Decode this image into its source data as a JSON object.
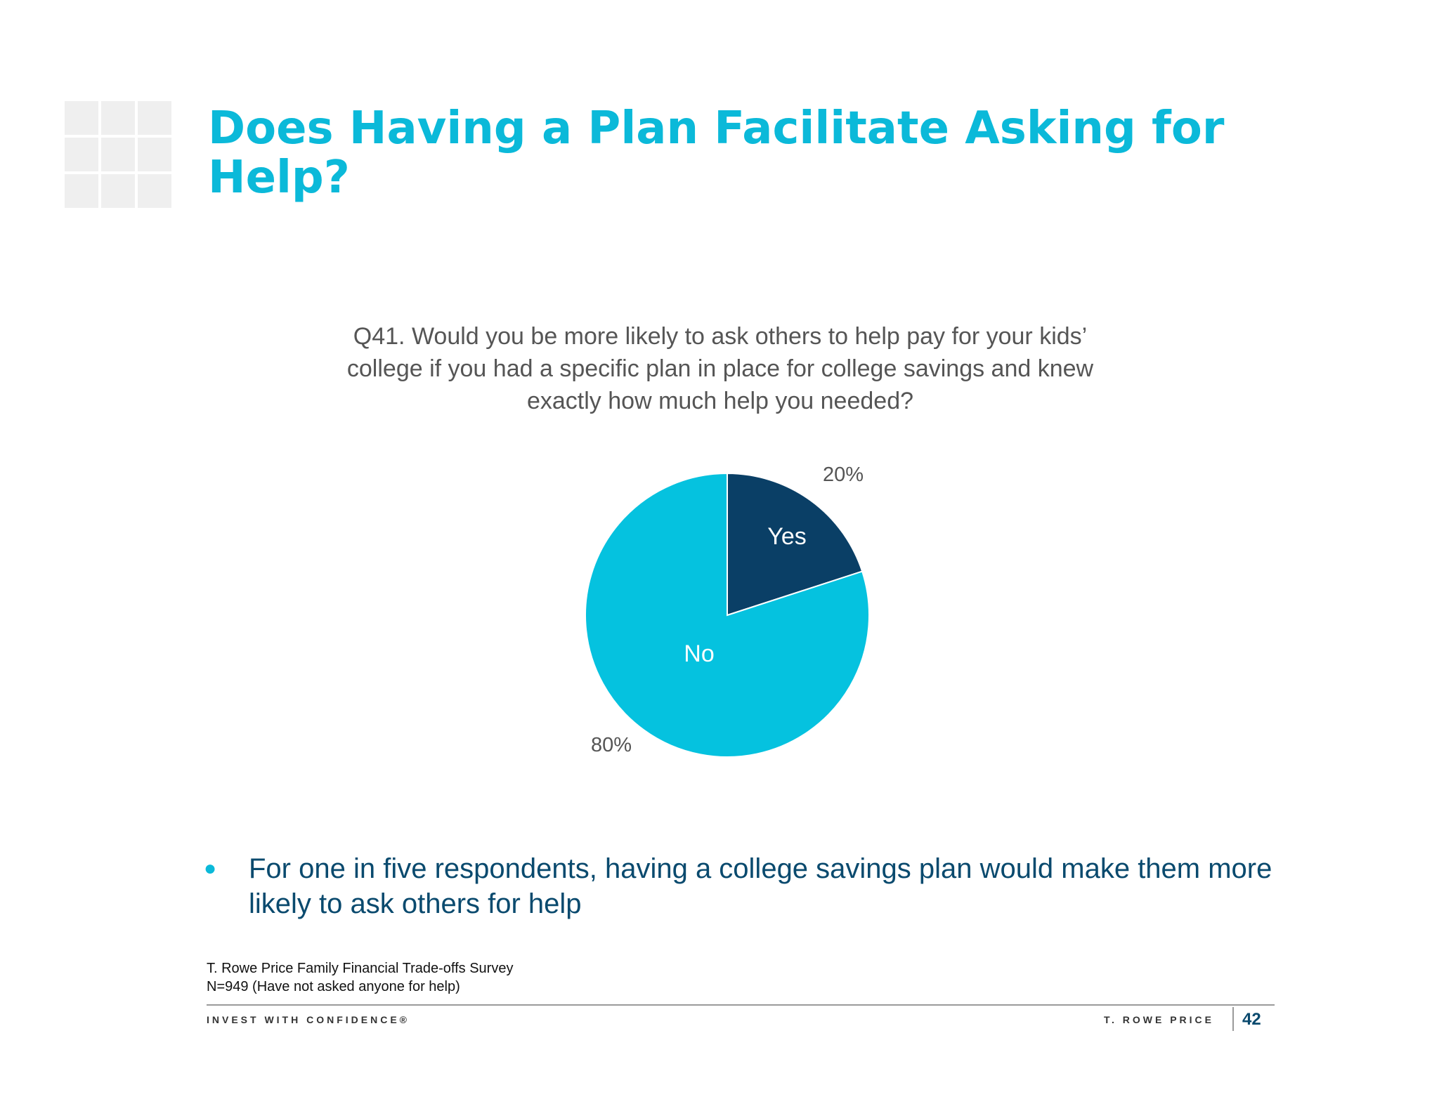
{
  "slide": {
    "title": "Does Having a Plan Facilitate Asking for Help?",
    "question": "Q41. Would you be more likely to ask others to help pay for your kids’ college if you had a specific plan in place for college savings and knew exactly how much help you needed?",
    "bullet": "For one in five respondents, having a college savings plan would make them more likely to ask others for help",
    "source_line1": "T. Rowe Price Family Financial Trade-offs Survey",
    "source_line2": "N=949 (Have not asked anyone for help)",
    "tagline": "INVEST WITH CONFIDENCE®",
    "brand": "T. ROWE PRICE",
    "page_number": "42"
  },
  "colors": {
    "accent": "#0bb9d9",
    "dark_blue": "#0a3f66",
    "text_blue": "#0a4a6e"
  },
  "chart_data": {
    "type": "pie",
    "slices": [
      {
        "label": "Yes",
        "value": 20,
        "value_label": "20%",
        "color": "#0a3f66"
      },
      {
        "label": "No",
        "value": 80,
        "value_label": "80%",
        "color": "#05c2df"
      }
    ]
  }
}
